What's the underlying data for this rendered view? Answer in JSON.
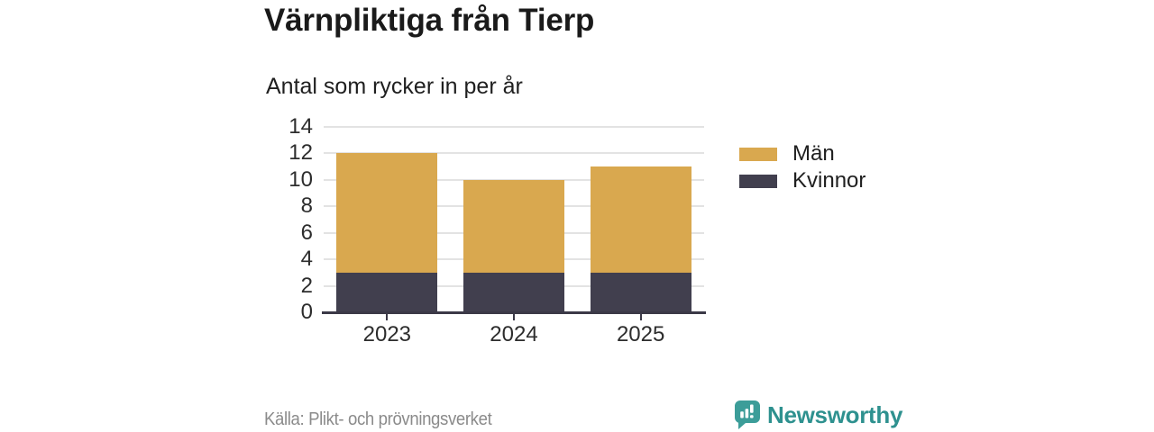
{
  "title": "Värnpliktiga från Tierp",
  "subtitle": "Antal som rycker in per år",
  "source": "Källa: Plikt- och prövningsverket",
  "brand": {
    "name": "Newsworthy",
    "icon": "newsworthy-speech-bubble-bar-chart-icon",
    "icon_color": "#3c9d99",
    "text_color": "#2e918f"
  },
  "colors": {
    "men": "#d9a84f",
    "women": "#413f4e",
    "gridline": "#e3e3e3",
    "axis_line": "#3b3947",
    "axis_text": "#2d2d2d",
    "title_text": "#1a1a1a",
    "source_text": "#8b8b8b",
    "background": "#ffffff"
  },
  "chart_data": {
    "type": "bar",
    "stacked": true,
    "title": "Värnpliktiga från Tierp",
    "subtitle": "Antal som rycker in per år",
    "xlabel": "",
    "ylabel": "",
    "categories": [
      "2023",
      "2024",
      "2025"
    ],
    "series": [
      {
        "name": "Kvinnor",
        "color": "#413f4e",
        "values": [
          3,
          3,
          3
        ]
      },
      {
        "name": "Män",
        "color": "#d9a84f",
        "values": [
          9,
          7,
          8
        ]
      }
    ],
    "totals": [
      12,
      10,
      11
    ],
    "ylim": [
      0,
      14
    ],
    "yticks": [
      0,
      2,
      4,
      6,
      8,
      10,
      12,
      14
    ],
    "grid": "horizontal",
    "legend_position": "right",
    "legend": [
      {
        "label": "Män",
        "color": "#d9a84f"
      },
      {
        "label": "Kvinnor",
        "color": "#413f4e"
      }
    ]
  }
}
